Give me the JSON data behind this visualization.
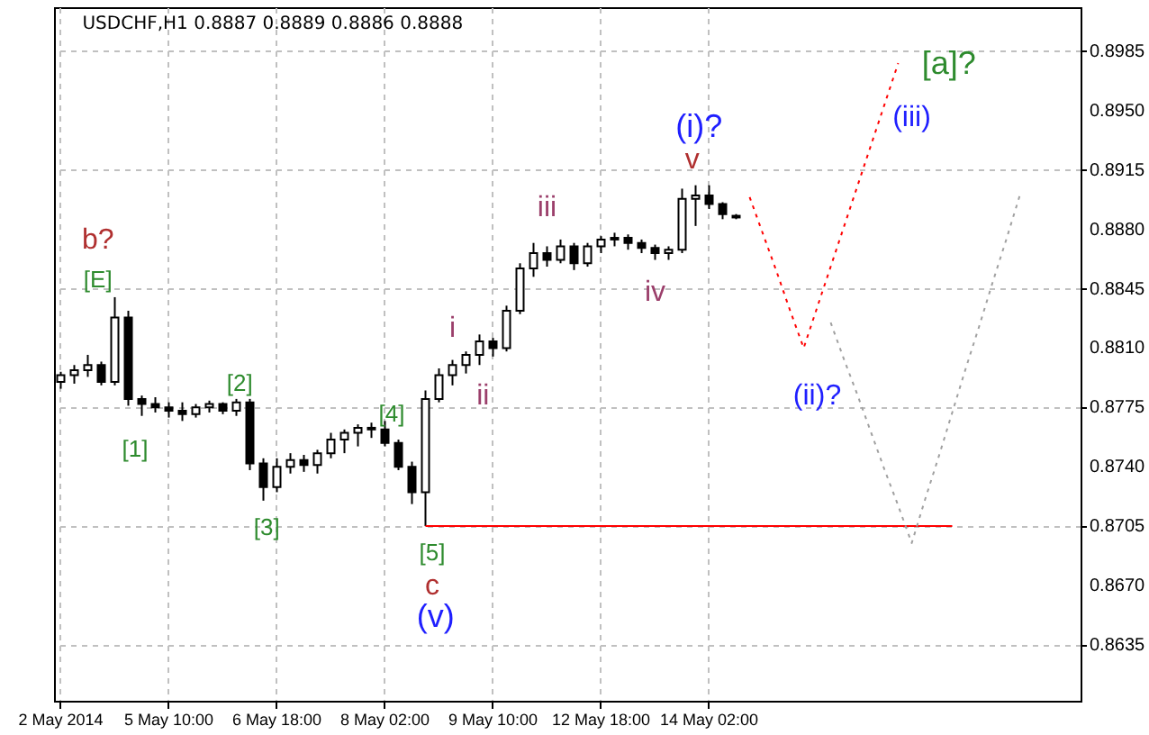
{
  "chart_data": {
    "type": "candlestick",
    "title": "USDCHF,H1  0.8887 0.8889 0.8886 0.8888",
    "categories": [
      "2 May 2014",
      null,
      null,
      null,
      null,
      null,
      null,
      null,
      "5 May 10:00",
      null,
      null,
      null,
      null,
      null,
      null,
      null,
      "6 May 18:00",
      null,
      null,
      null,
      null,
      null,
      null,
      null,
      "8 May 02:00",
      null,
      null,
      null,
      null,
      null,
      null,
      null,
      "9 May 10:00",
      null,
      null,
      null,
      null,
      null,
      null,
      null,
      "12 May 18:00",
      null,
      null,
      null,
      null,
      null,
      null,
      null,
      "14 May 02:00",
      null,
      null,
      null,
      null,
      null,
      null,
      null,
      null,
      null,
      null,
      null,
      null,
      null,
      null,
      null,
      null,
      null,
      null,
      null,
      null,
      null,
      null,
      null,
      null,
      null,
      null,
      null
    ],
    "ohlc": [
      [
        0.879,
        0.8796,
        0.8786,
        0.8794
      ],
      [
        0.8794,
        0.88,
        0.8789,
        0.8797
      ],
      [
        0.8797,
        0.8806,
        0.8793,
        0.88
      ],
      [
        0.88,
        0.8802,
        0.8788,
        0.879
      ],
      [
        0.879,
        0.884,
        0.8788,
        0.8828
      ],
      [
        0.8828,
        0.8832,
        0.8776,
        0.878
      ],
      [
        0.878,
        0.8782,
        0.877,
        0.8777
      ],
      [
        0.8777,
        0.8781,
        0.8772,
        0.8775
      ],
      [
        0.8775,
        0.8778,
        0.8769,
        0.8773
      ],
      [
        0.8773,
        0.8778,
        0.8767,
        0.8771
      ],
      [
        0.8771,
        0.8777,
        0.8769,
        0.8775
      ],
      [
        0.8775,
        0.8779,
        0.8772,
        0.8777
      ],
      [
        0.8777,
        0.8778,
        0.8771,
        0.8773
      ],
      [
        0.8773,
        0.878,
        0.877,
        0.8778
      ],
      [
        0.8778,
        0.878,
        0.8738,
        0.8742
      ],
      [
        0.8742,
        0.8745,
        0.872,
        0.8728
      ],
      [
        0.8728,
        0.8745,
        0.8725,
        0.874
      ],
      [
        0.874,
        0.8748,
        0.8736,
        0.8744
      ],
      [
        0.8744,
        0.8747,
        0.8737,
        0.8741
      ],
      [
        0.8741,
        0.875,
        0.8736,
        0.8748
      ],
      [
        0.8748,
        0.876,
        0.8745,
        0.8756
      ],
      [
        0.8756,
        0.8762,
        0.8748,
        0.876
      ],
      [
        0.876,
        0.8765,
        0.8752,
        0.8763
      ],
      [
        0.8763,
        0.8766,
        0.8757,
        0.8762
      ],
      [
        0.8762,
        0.8767,
        0.8752,
        0.8754
      ],
      [
        0.8754,
        0.8756,
        0.8738,
        0.874
      ],
      [
        0.874,
        0.8743,
        0.8718,
        0.8725
      ],
      [
        0.8725,
        0.8785,
        0.8705,
        0.878
      ],
      [
        0.878,
        0.8798,
        0.8778,
        0.8794
      ],
      [
        0.8794,
        0.8803,
        0.8788,
        0.88
      ],
      [
        0.88,
        0.8808,
        0.8795,
        0.8806
      ],
      [
        0.8806,
        0.8818,
        0.88,
        0.8814
      ],
      [
        0.8814,
        0.8816,
        0.8805,
        0.881
      ],
      [
        0.881,
        0.8835,
        0.8808,
        0.8832
      ],
      [
        0.8832,
        0.886,
        0.883,
        0.8857
      ],
      [
        0.8857,
        0.8872,
        0.8852,
        0.8866
      ],
      [
        0.8866,
        0.887,
        0.8858,
        0.8862
      ],
      [
        0.8862,
        0.8874,
        0.886,
        0.887
      ],
      [
        0.887,
        0.8872,
        0.8856,
        0.886
      ],
      [
        0.886,
        0.8872,
        0.8858,
        0.887
      ],
      [
        0.887,
        0.8876,
        0.8866,
        0.8874
      ],
      [
        0.8874,
        0.8878,
        0.887,
        0.8875
      ],
      [
        0.8875,
        0.8877,
        0.8868,
        0.8872
      ],
      [
        0.8872,
        0.8874,
        0.8866,
        0.8869
      ],
      [
        0.8869,
        0.8871,
        0.8862,
        0.8866
      ],
      [
        0.8866,
        0.887,
        0.8862,
        0.8868
      ],
      [
        0.8868,
        0.8904,
        0.8866,
        0.8898
      ],
      [
        0.8898,
        0.8906,
        0.8882,
        0.89
      ],
      [
        0.89,
        0.8906,
        0.8892,
        0.8895
      ],
      [
        0.8895,
        0.8896,
        0.8886,
        0.8889
      ],
      [
        0.8887,
        0.8889,
        0.8886,
        0.8888
      ],
      null,
      null,
      null,
      null,
      null,
      null,
      null,
      null,
      null,
      null,
      null,
      null,
      null,
      null,
      null,
      null,
      null,
      null,
      null,
      null,
      null,
      null,
      null,
      null,
      null
    ],
    "series": [
      {
        "type": "line",
        "color": "#ff0000",
        "line_style": "solid",
        "values": [
          null,
          null,
          null,
          null,
          null,
          null,
          null,
          null,
          null,
          null,
          null,
          null,
          null,
          null,
          null,
          null,
          null,
          null,
          null,
          null,
          null,
          null,
          null,
          null,
          null,
          null,
          null,
          0.8705,
          0.8705,
          0.8705,
          0.8705,
          0.8705,
          0.8705,
          0.8705,
          0.8705,
          0.8705,
          0.8705,
          0.8705,
          0.8705,
          0.8705,
          0.8705,
          0.8705,
          0.8705,
          0.8705,
          0.8705,
          0.8705,
          0.8705,
          0.8705,
          0.8705,
          0.8705,
          0.8705,
          0.8705,
          0.8705,
          0.8705,
          0.8705,
          0.8705,
          0.8705,
          0.8705,
          0.8705,
          0.8705,
          0.8705,
          0.8705,
          0.8705,
          0.8705,
          0.8705,
          0.8705,
          0.8705,
          null,
          null,
          null,
          null,
          null,
          null,
          null,
          null,
          null
        ]
      },
      {
        "type": "line",
        "color": "#ff0000",
        "line_style": "dotted",
        "values": [
          null,
          null,
          null,
          null,
          null,
          null,
          null,
          null,
          null,
          null,
          null,
          null,
          null,
          null,
          null,
          null,
          null,
          null,
          null,
          null,
          null,
          null,
          null,
          null,
          null,
          null,
          null,
          null,
          null,
          null,
          null,
          null,
          null,
          null,
          null,
          null,
          null,
          null,
          null,
          null,
          null,
          null,
          null,
          null,
          null,
          null,
          null,
          null,
          null,
          null,
          null,
          0.8899,
          0.8877,
          0.8855,
          0.8832,
          0.881,
          0.8834,
          0.8858,
          0.8882,
          0.8906,
          0.893,
          0.8954,
          0.8978,
          null,
          null,
          null,
          null,
          null,
          null,
          null,
          null,
          null,
          null,
          null,
          null,
          null
        ]
      },
      {
        "type": "line",
        "color": "#a0a0a0",
        "line_style": "dotted",
        "values": [
          null,
          null,
          null,
          null,
          null,
          null,
          null,
          null,
          null,
          null,
          null,
          null,
          null,
          null,
          null,
          null,
          null,
          null,
          null,
          null,
          null,
          null,
          null,
          null,
          null,
          null,
          null,
          null,
          null,
          null,
          null,
          null,
          null,
          null,
          null,
          null,
          null,
          null,
          null,
          null,
          null,
          null,
          null,
          null,
          null,
          null,
          null,
          null,
          null,
          null,
          null,
          null,
          null,
          null,
          null,
          null,
          null,
          0.8825,
          0.8803,
          0.8782,
          0.876,
          0.8738,
          0.8717,
          0.8695,
          0.8721,
          0.8746,
          0.8772,
          0.8798,
          0.8823,
          0.8849,
          0.8874,
          0.89,
          null,
          null,
          null,
          null
        ]
      }
    ],
    "ylim": [
      0.8602,
      0.9011
    ],
    "yticks": [
      {
        "value": 0.8635,
        "label": "0.8635"
      },
      {
        "value": 0.867,
        "label": "0.8670"
      },
      {
        "value": 0.8705,
        "label": "0.8705"
      },
      {
        "value": 0.874,
        "label": "0.8740"
      },
      {
        "value": 0.8775,
        "label": "0.8775"
      },
      {
        "value": 0.881,
        "label": "0.8810"
      },
      {
        "value": 0.8845,
        "label": "0.8845"
      },
      {
        "value": 0.888,
        "label": "0.8880"
      },
      {
        "value": 0.8915,
        "label": "0.8915"
      },
      {
        "value": 0.895,
        "label": "0.8950"
      },
      {
        "value": 0.8985,
        "label": "0.8985"
      }
    ],
    "grid": true,
    "annotations": [
      "b?",
      "[E]",
      "[1]",
      "[2]",
      "[3]",
      "[4]",
      "[5]",
      "c",
      "(v)",
      "i",
      "ii",
      "iii",
      "iv",
      "v",
      "(i)?",
      "(ii)?",
      "(iii)",
      "[a]?"
    ]
  }
}
